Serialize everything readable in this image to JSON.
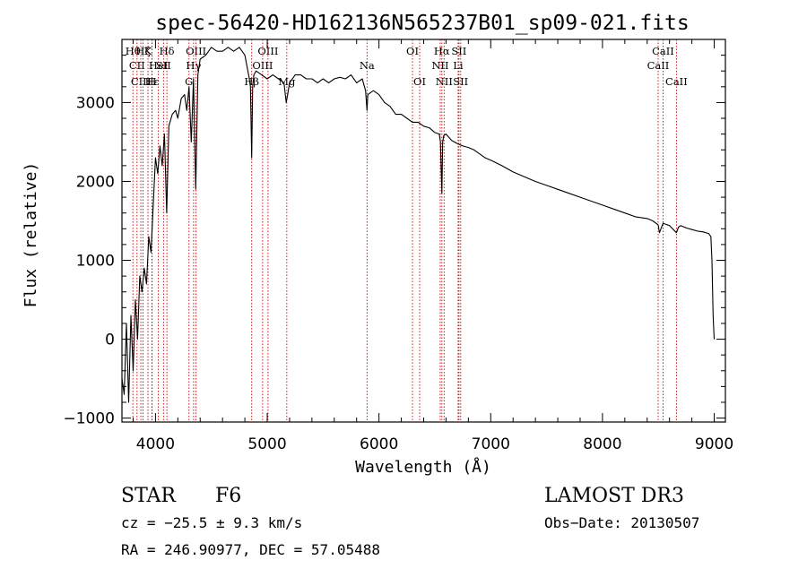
{
  "chart_data": {
    "type": "line",
    "title": "spec-56420-HD162136N565237B01_sp09-021.fits",
    "xlabel": "Wavelength (Å)",
    "ylabel": "Flux (relative)",
    "xlim": [
      3700,
      9100
    ],
    "ylim": [
      -1050,
      3800
    ],
    "xticks": [
      {
        "value": 4000,
        "label": "4000"
      },
      {
        "value": 5000,
        "label": "5000"
      },
      {
        "value": 6000,
        "label": "6000"
      },
      {
        "value": 7000,
        "label": "7000"
      },
      {
        "value": 8000,
        "label": "8000"
      },
      {
        "value": 9000,
        "label": "9000"
      }
    ],
    "yticks": [
      {
        "value": -1000,
        "label": "−1000"
      },
      {
        "value": 0,
        "label": "0"
      },
      {
        "value": 1000,
        "label": "1000"
      },
      {
        "value": 2000,
        "label": "2000"
      },
      {
        "value": 3000,
        "label": "3000"
      }
    ],
    "series": [
      {
        "name": "flux",
        "x": [
          3700,
          3720,
          3740,
          3760,
          3780,
          3800,
          3820,
          3840,
          3860,
          3880,
          3900,
          3920,
          3940,
          3960,
          3980,
          4000,
          4020,
          4040,
          4060,
          4080,
          4100,
          4120,
          4150,
          4180,
          4200,
          4230,
          4260,
          4280,
          4300,
          4320,
          4340,
          4360,
          4380,
          4400,
          4450,
          4500,
          4550,
          4600,
          4650,
          4700,
          4750,
          4800,
          4840,
          4850,
          4861,
          4870,
          4880,
          4900,
          4950,
          5000,
          5050,
          5100,
          5150,
          5170,
          5183,
          5200,
          5250,
          5300,
          5350,
          5400,
          5450,
          5500,
          5550,
          5600,
          5650,
          5700,
          5750,
          5800,
          5850,
          5880,
          5893,
          5900,
          5950,
          6000,
          6050,
          6100,
          6150,
          6200,
          6250,
          6300,
          6350,
          6400,
          6450,
          6500,
          6540,
          6550,
          6563,
          6570,
          6580,
          6600,
          6650,
          6700,
          6750,
          6800,
          6850,
          6900,
          6950,
          7000,
          7100,
          7200,
          7300,
          7400,
          7500,
          7600,
          7700,
          7800,
          7900,
          8000,
          8100,
          8200,
          8300,
          8400,
          8450,
          8498,
          8510,
          8542,
          8560,
          8600,
          8662,
          8680,
          8700,
          8750,
          8800,
          8850,
          8900,
          8950,
          8970,
          8980,
          8990,
          9000
        ],
        "y": [
          -500,
          -700,
          200,
          -800,
          300,
          -400,
          500,
          0,
          800,
          600,
          900,
          700,
          1300,
          1100,
          1700,
          2300,
          2100,
          2450,
          2200,
          2600,
          1600,
          2700,
          2850,
          2900,
          2800,
          3050,
          3100,
          2900,
          3200,
          2500,
          3300,
          1900,
          3350,
          3550,
          3600,
          3700,
          3650,
          3650,
          3700,
          3650,
          3700,
          3600,
          3300,
          3200,
          2300,
          3200,
          3350,
          3400,
          3350,
          3300,
          3350,
          3300,
          3250,
          3000,
          3100,
          3250,
          3350,
          3350,
          3300,
          3300,
          3250,
          3300,
          3250,
          3300,
          3320,
          3300,
          3350,
          3250,
          3300,
          3150,
          2900,
          3100,
          3150,
          3100,
          3000,
          2950,
          2850,
          2850,
          2800,
          2750,
          2750,
          2700,
          2680,
          2620,
          2600,
          2500,
          1850,
          2500,
          2580,
          2600,
          2520,
          2480,
          2450,
          2430,
          2400,
          2350,
          2300,
          2270,
          2200,
          2120,
          2060,
          2000,
          1950,
          1900,
          1850,
          1800,
          1750,
          1700,
          1650,
          1600,
          1550,
          1530,
          1500,
          1450,
          1350,
          1470,
          1460,
          1440,
          1350,
          1420,
          1440,
          1410,
          1390,
          1370,
          1360,
          1340,
          1300,
          1000,
          300,
          0
        ]
      }
    ],
    "spectral_lines": [
      {
        "wavelength": 3798,
        "label": "Hθ",
        "row": 1
      },
      {
        "wavelength": 3835,
        "label": "CII",
        "row": 2
      },
      {
        "wavelength": 3869,
        "label": "CIII",
        "row": 3
      },
      {
        "wavelength": 3889,
        "label": "Hζ",
        "row": 1
      },
      {
        "wavelength": 3933,
        "label": "K",
        "row": 1
      },
      {
        "wavelength": 3968,
        "label": "H",
        "row": 3
      },
      {
        "wavelength": 3970,
        "label": "Hε",
        "row": 3
      },
      {
        "wavelength": 4026,
        "label": "HeI",
        "row": 2
      },
      {
        "wavelength": 4072,
        "label": "SII",
        "row": 2
      },
      {
        "wavelength": 4102,
        "label": "Hδ",
        "row": 1
      },
      {
        "wavelength": 4300,
        "label": "G",
        "row": 3
      },
      {
        "wavelength": 4341,
        "label": "Hγ",
        "row": 2
      },
      {
        "wavelength": 4363,
        "label": "OIII",
        "row": 1
      },
      {
        "wavelength": 4861,
        "label": "Hβ",
        "row": 3
      },
      {
        "wavelength": 4959,
        "label": "OIII",
        "row": 2
      },
      {
        "wavelength": 5007,
        "label": "OIII",
        "row": 1
      },
      {
        "wavelength": 5175,
        "label": "Mg",
        "row": 3
      },
      {
        "wavelength": 5893,
        "label": "Na",
        "row": 2
      },
      {
        "wavelength": 6300,
        "label": "OI",
        "row": 1
      },
      {
        "wavelength": 6364,
        "label": "OI",
        "row": 3
      },
      {
        "wavelength": 6548,
        "label": "NII",
        "row": 2
      },
      {
        "wavelength": 6563,
        "label": "Hα",
        "row": 1
      },
      {
        "wavelength": 6583,
        "label": "NII",
        "row": 3
      },
      {
        "wavelength": 6708,
        "label": "Li",
        "row": 2
      },
      {
        "wavelength": 6716,
        "label": "SII",
        "row": 1
      },
      {
        "wavelength": 6731,
        "label": "SII",
        "row": 3
      },
      {
        "wavelength": 8498,
        "label": "CaII",
        "row": 2
      },
      {
        "wavelength": 8542,
        "label": "CaII",
        "row": 1
      },
      {
        "wavelength": 8662,
        "label": "CaII",
        "row": 3
      }
    ]
  },
  "info": {
    "class_label": "STAR",
    "subclass": "F6",
    "survey": "LAMOST DR3",
    "cz": "cz = −25.5 ± 9.3 km/s",
    "obs_date": "Obs−Date: 20130507",
    "radec": "RA = 246.90977, DEC =  57.05488"
  },
  "colors": {
    "line_marker": "#cc0000",
    "flux": "#000000",
    "axes": "#000000"
  }
}
